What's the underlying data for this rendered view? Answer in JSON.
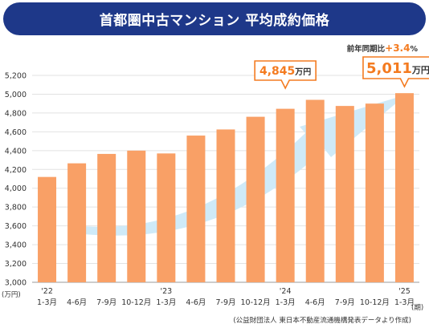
{
  "title": "首都圏中古マンション 平均成約価格",
  "colors": {
    "banner": "#1e3889",
    "bar": "#f9a066",
    "accent": "#f47b20",
    "arrow": "#cfeaf8"
  },
  "chart_data": {
    "type": "bar",
    "categories": [
      [
        "'22",
        "1-3月"
      ],
      [
        "",
        "4-6月"
      ],
      [
        "",
        "7-9月"
      ],
      [
        "",
        "10-12月"
      ],
      [
        "'23",
        "1-3月"
      ],
      [
        "",
        "4-6月"
      ],
      [
        "",
        "7-9月"
      ],
      [
        "",
        "10-12月"
      ],
      [
        "'24",
        "1-3月"
      ],
      [
        "",
        "4-6月"
      ],
      [
        "",
        "7-9月"
      ],
      [
        "",
        "10-12月"
      ],
      [
        "'25",
        "1-3月"
      ]
    ],
    "values": [
      4120,
      4265,
      4365,
      4400,
      4370,
      4560,
      4625,
      4760,
      4845,
      4940,
      4875,
      4900,
      5011
    ],
    "ylim": [
      3000,
      5200
    ],
    "yticks": [
      "3,000",
      "3,200",
      "3,400",
      "3,600",
      "3,800",
      "4,000",
      "4,200",
      "4,400",
      "4,600",
      "4,800",
      "5,000",
      "5,200"
    ],
    "yunit": "(万円)",
    "xunit": "(期)",
    "callouts": [
      {
        "index": 8,
        "value": "4,845",
        "unit": "万円"
      },
      {
        "index": 12,
        "value": "5,011",
        "unit": "万円"
      }
    ],
    "yoy_label": "前年同期比",
    "yoy_value": "+3.4",
    "yoy_unit": "%",
    "source": "(公益財団法人 東日本不動産流通機構発表データより作成)",
    "trend_arrow": "light-blue-upward-arrow"
  }
}
